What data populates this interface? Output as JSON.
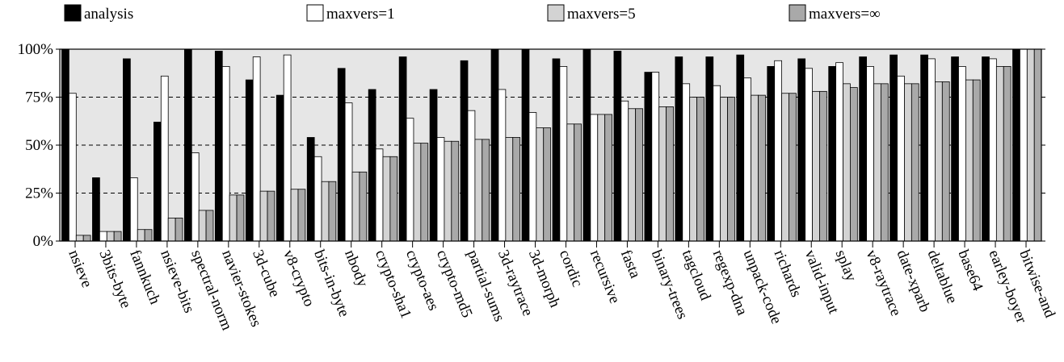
{
  "chart_data": {
    "type": "bar",
    "title": "",
    "xlabel": "",
    "ylabel": "",
    "ylim": [
      0,
      100
    ],
    "y_unit": "%",
    "yticks": [
      "0%",
      "25%",
      "50%",
      "75%",
      "100%"
    ],
    "grid": "dashed horizontal lines at 25%, 50%, 75%",
    "legend_position": "top",
    "categories": [
      "nsieve",
      "3bits-byte",
      "fannkuch",
      "nsieve-bits",
      "spectral-norm",
      "navier-stokes",
      "3d-cube",
      "v8-crypto",
      "bits-in-byte",
      "nbody",
      "crypto-sha1",
      "crypto-aes",
      "crypto-md5",
      "partial-sums",
      "3d-raytrace",
      "3d-morph",
      "cordic",
      "recursive",
      "fasta",
      "binary-trees",
      "tagcloud",
      "regexp-dna",
      "unpack-code",
      "richards",
      "valid-input",
      "splay",
      "v8-raytrace",
      "date-xparb",
      "deltablue",
      "base64",
      "earley-boyer",
      "bitwise-and"
    ],
    "series": [
      {
        "name": "analysis",
        "color": "#000000",
        "values": [
          100,
          33,
          95,
          62,
          100,
          99,
          84,
          76,
          54,
          90,
          79,
          96,
          79,
          94,
          100,
          100,
          95,
          100,
          99,
          88,
          96,
          96,
          97,
          91,
          95,
          91,
          96,
          97,
          97,
          96,
          96,
          100
        ]
      },
      {
        "name": "maxvers=1",
        "color": "#ffffff",
        "values": [
          77,
          5,
          33,
          86,
          46,
          91,
          96,
          97,
          44,
          72,
          48,
          64,
          54,
          68,
          79,
          67,
          91,
          66,
          73,
          88,
          82,
          81,
          85,
          94,
          90,
          93,
          91,
          86,
          95,
          91,
          95,
          100
        ]
      },
      {
        "name": "maxvers=5",
        "color": "#d3d3d3",
        "values": [
          3,
          5,
          6,
          12,
          16,
          24,
          26,
          27,
          31,
          36,
          44,
          51,
          52,
          53,
          54,
          59,
          61,
          66,
          69,
          70,
          75,
          75,
          76,
          77,
          78,
          82,
          82,
          82,
          83,
          84,
          91,
          100
        ]
      },
      {
        "name": "maxvers=∞",
        "color": "#a9a9a9",
        "values": [
          3,
          5,
          6,
          12,
          16,
          24,
          26,
          27,
          31,
          36,
          44,
          51,
          52,
          53,
          54,
          59,
          61,
          66,
          69,
          70,
          75,
          75,
          76,
          77,
          78,
          80,
          82,
          82,
          83,
          84,
          91,
          100
        ]
      }
    ]
  }
}
